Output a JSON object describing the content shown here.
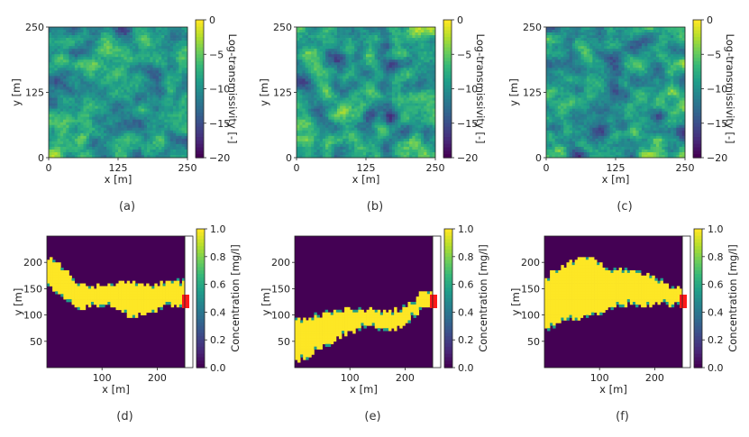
{
  "figure": {
    "captions": [
      "(a)",
      "(b)",
      "(c)",
      "(d)",
      "(e)",
      "(f)"
    ]
  },
  "colors": {
    "viridis": [
      "#440154",
      "#482878",
      "#3e4989",
      "#31688e",
      "#26828e",
      "#1f9e89",
      "#35b779",
      "#6ece58",
      "#b5de2b",
      "#fde725"
    ],
    "well": "#ff1a1a"
  },
  "chart_data": [
    {
      "id": "a",
      "type": "heatmap",
      "caption": "(a)",
      "seed": 11,
      "xlabel": "x [m]",
      "ylabel": "y [m]",
      "xlim": [
        0,
        250
      ],
      "ylim": [
        0,
        250
      ],
      "xticks": [
        0,
        125,
        250
      ],
      "yticks": [
        0,
        125,
        250
      ],
      "colorbar": {
        "label": "Log-transmissivity [-]",
        "range": [
          -20,
          0
        ],
        "ticks": [
          0,
          -5,
          -10,
          -15,
          -20
        ]
      }
    },
    {
      "id": "b",
      "type": "heatmap",
      "caption": "(b)",
      "seed": 29,
      "xlabel": "x [m]",
      "ylabel": "y [m]",
      "xlim": [
        0,
        250
      ],
      "ylim": [
        0,
        250
      ],
      "xticks": [
        0,
        125,
        250
      ],
      "yticks": [
        0,
        125,
        250
      ],
      "colorbar": {
        "label": "Log-transmissivity [-]",
        "range": [
          -20,
          0
        ],
        "ticks": [
          0,
          -5,
          -10,
          -15,
          -20
        ]
      }
    },
    {
      "id": "c",
      "type": "heatmap",
      "caption": "(c)",
      "seed": 47,
      "xlabel": "x [m]",
      "ylabel": "y [m]",
      "xlim": [
        0,
        250
      ],
      "ylim": [
        0,
        250
      ],
      "xticks": [
        0,
        125,
        250
      ],
      "yticks": [
        0,
        125,
        250
      ],
      "colorbar": {
        "label": "Log-transmissivity [-]",
        "range": [
          -20,
          0
        ],
        "ticks": [
          0,
          -5,
          -10,
          -15,
          -20
        ]
      }
    },
    {
      "id": "d",
      "type": "heatmap",
      "caption": "(d)",
      "xlabel": "x [m]",
      "ylabel": "y [m]",
      "xlim": [
        0,
        250
      ],
      "ylim": [
        0,
        250
      ],
      "xticks": [
        100,
        200
      ],
      "yticks": [
        50,
        100,
        150,
        200
      ],
      "plume_y_top": [
        210,
        200,
        175,
        160,
        155,
        155,
        160,
        162,
        160,
        158,
        160,
        165,
        165
      ],
      "plume_y_bottom": [
        160,
        140,
        120,
        115,
        115,
        118,
        112,
        100,
        98,
        105,
        115,
        118,
        120
      ],
      "well": {
        "x": 250,
        "y": 125
      },
      "colorbar": {
        "label": "Concentration [mg/l]",
        "range": [
          0,
          1
        ],
        "ticks": [
          0.0,
          0.2,
          0.4,
          0.6,
          0.8,
          1.0
        ]
      }
    },
    {
      "id": "e",
      "type": "heatmap",
      "caption": "(e)",
      "xlabel": "x [m]",
      "ylabel": "y [m]",
      "xlim": [
        0,
        250
      ],
      "ylim": [
        0,
        250
      ],
      "xticks": [
        100,
        200
      ],
      "yticks": [
        50,
        100,
        150,
        200
      ],
      "plume_y_top": [
        95,
        92,
        100,
        105,
        110,
        112,
        110,
        110,
        108,
        110,
        125,
        140,
        145
      ],
      "plume_y_bottom": [
        10,
        15,
        35,
        45,
        60,
        70,
        75,
        75,
        72,
        75,
        90,
        108,
        118
      ],
      "well": {
        "x": 250,
        "y": 125
      },
      "colorbar": {
        "label": "Concentration [mg/l]",
        "range": [
          0,
          1
        ],
        "ticks": [
          0.0,
          0.2,
          0.4,
          0.6,
          0.8,
          1.0
        ]
      }
    },
    {
      "id": "f",
      "type": "heatmap",
      "caption": "(f)",
      "xlabel": "x [m]",
      "ylabel": "y [m]",
      "xlim": [
        0,
        250
      ],
      "ylim": [
        0,
        250
      ],
      "xticks": [
        100,
        200
      ],
      "yticks": [
        50,
        100,
        150,
        200
      ],
      "plume_y_top": [
        170,
        185,
        200,
        205,
        210,
        195,
        185,
        190,
        185,
        175,
        165,
        155,
        150
      ],
      "plume_y_bottom": [
        70,
        80,
        90,
        95,
        100,
        105,
        115,
        120,
        120,
        118,
        120,
        120,
        122
      ],
      "well": {
        "x": 250,
        "y": 125
      },
      "colorbar": {
        "label": "Concentration [mg/l]",
        "range": [
          0,
          1
        ],
        "ticks": [
          0.0,
          0.2,
          0.4,
          0.6,
          0.8,
          1.0
        ]
      }
    }
  ]
}
